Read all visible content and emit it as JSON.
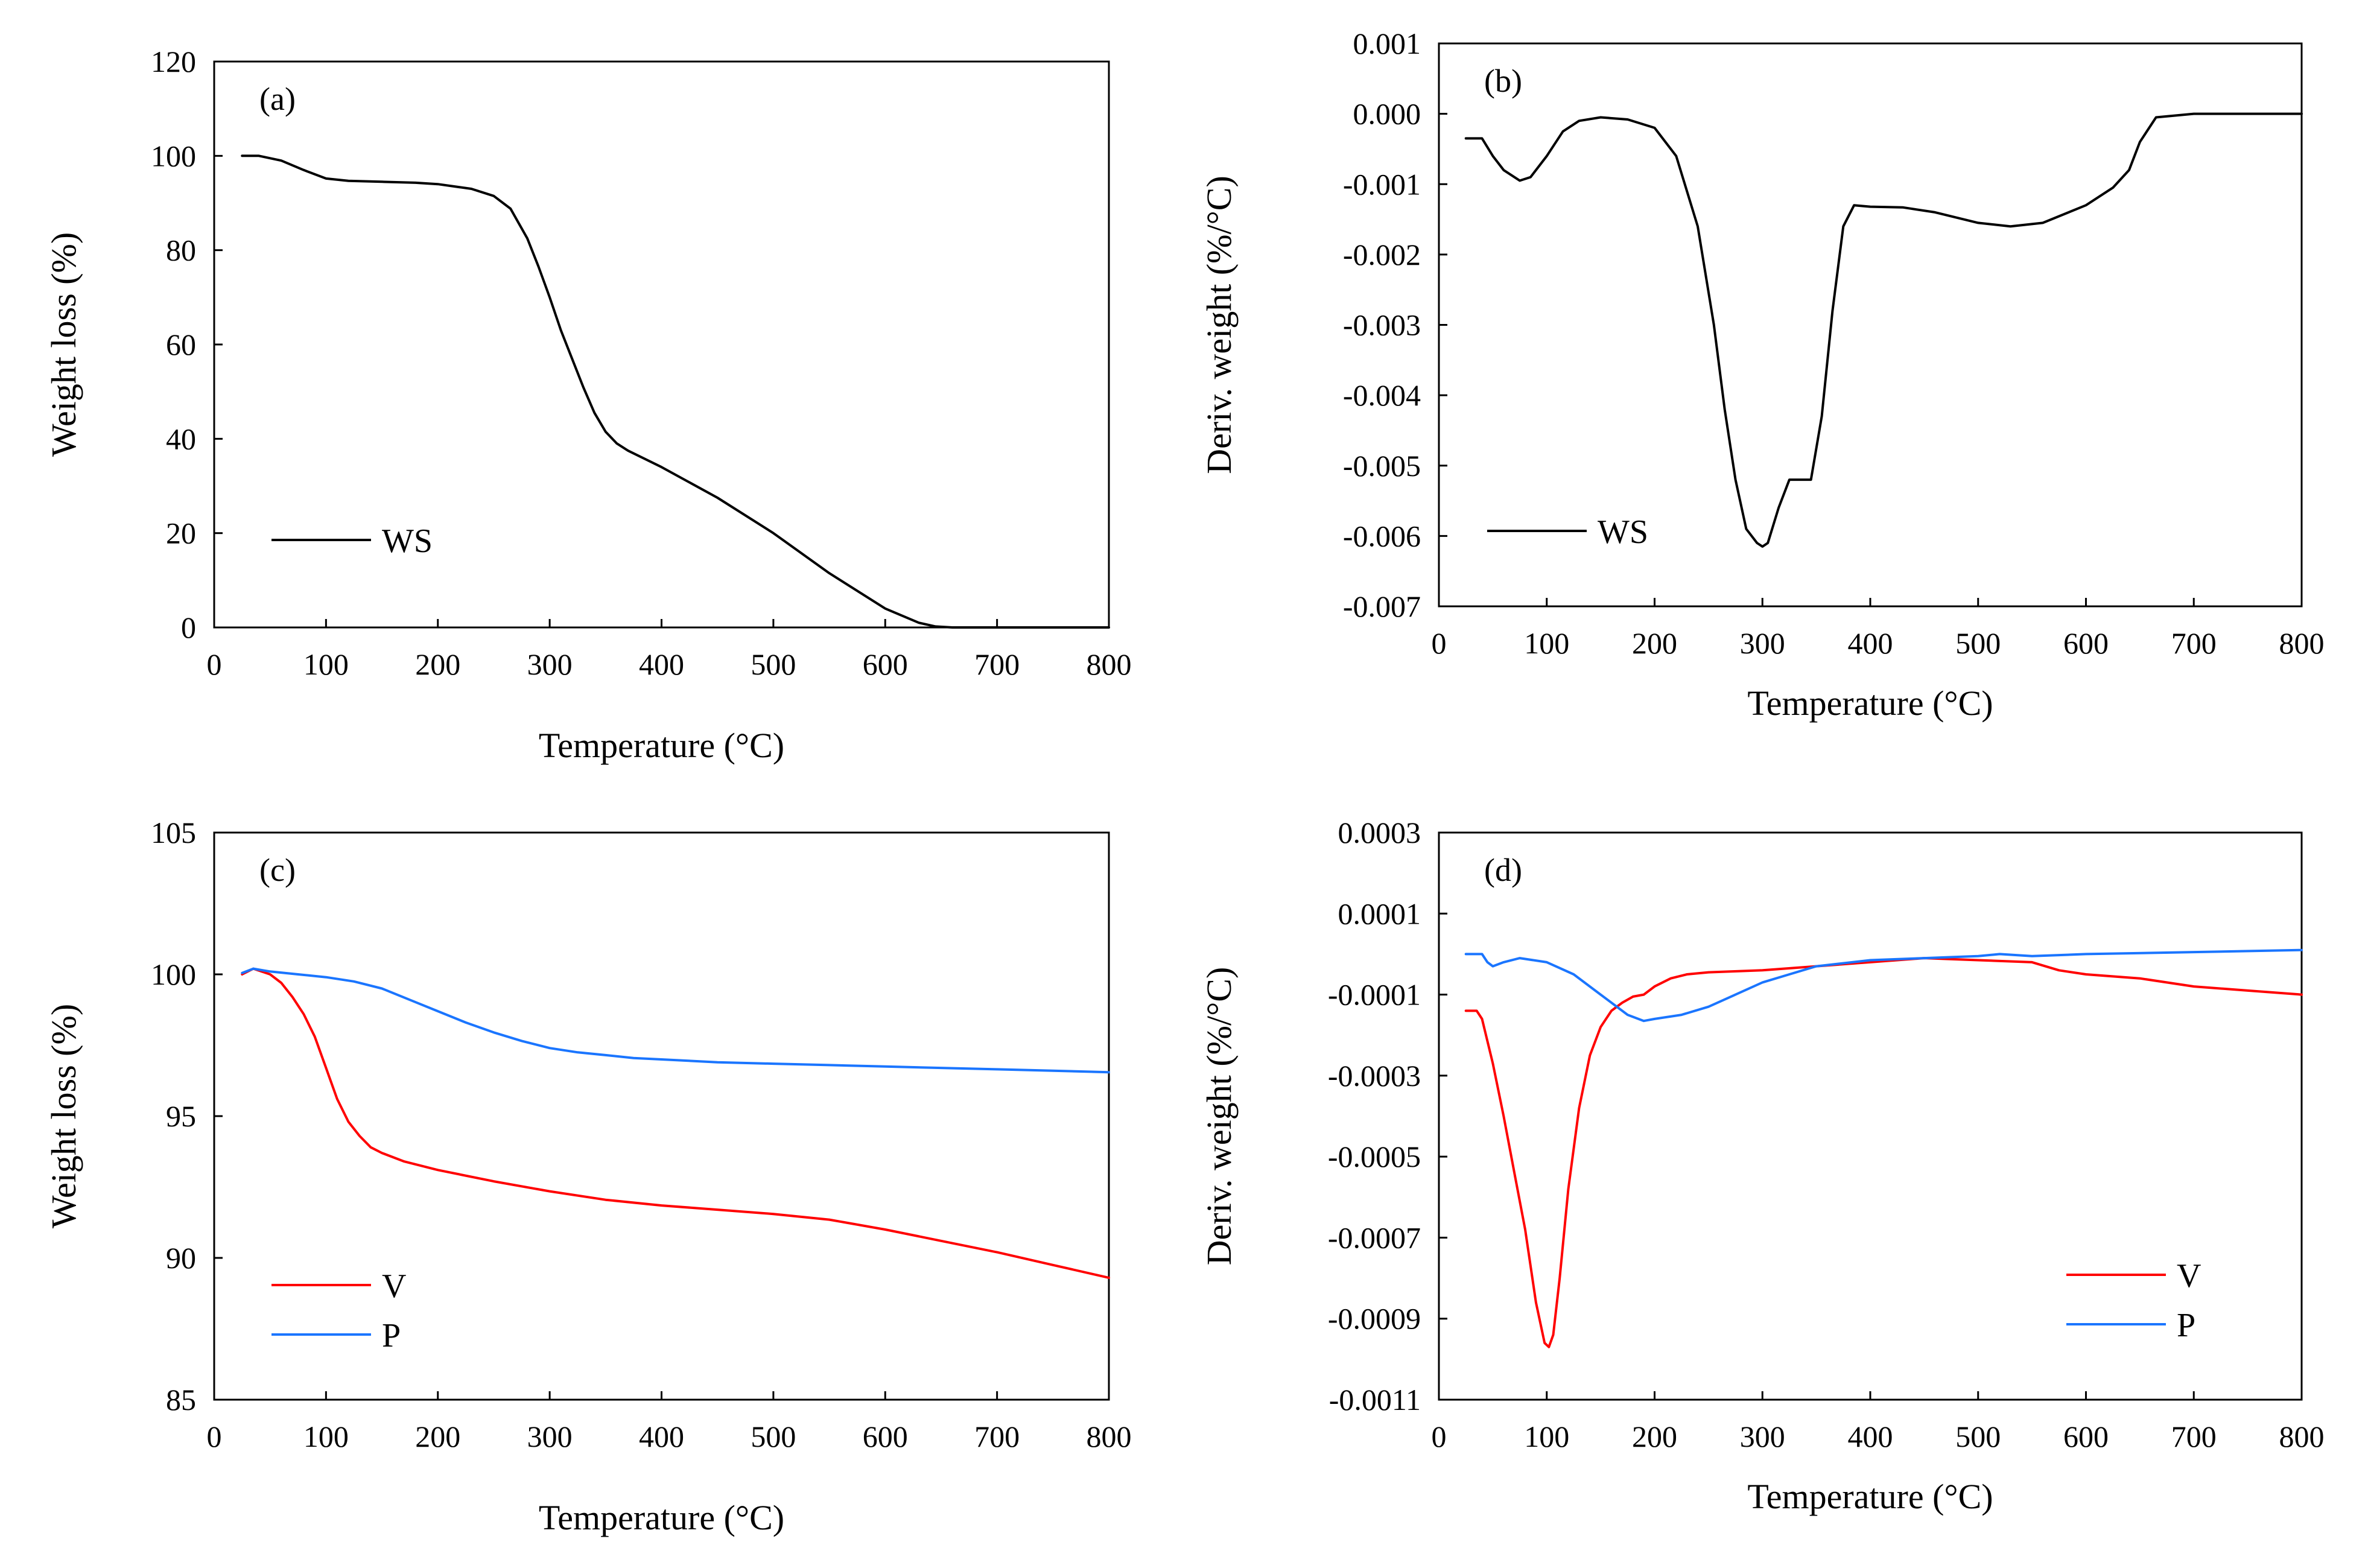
{
  "chart_data": [
    {
      "id": "a",
      "type": "line",
      "panel_label": "(a)",
      "xlabel": "Temperature (°C)",
      "ylabel": "Weight loss (%)",
      "xlim": [
        0,
        800
      ],
      "ylim": [
        0,
        120
      ],
      "xticks": [
        0,
        100,
        200,
        300,
        400,
        500,
        600,
        700,
        800
      ],
      "yticks": [
        0,
        20,
        40,
        60,
        80,
        100,
        120
      ],
      "legend_position": "bottom-left",
      "series": [
        {
          "name": "WS",
          "color": "#000000",
          "x": [
            25,
            40,
            60,
            80,
            100,
            120,
            150,
            180,
            200,
            230,
            250,
            265,
            280,
            290,
            300,
            310,
            320,
            330,
            340,
            350,
            360,
            370,
            400,
            450,
            500,
            550,
            600,
            630,
            645,
            660,
            700,
            800
          ],
          "y": [
            100,
            100,
            99,
            97,
            95.2,
            94.7,
            94.5,
            94.3,
            94,
            93,
            91.5,
            88.8,
            82.5,
            76.5,
            70,
            63,
            57,
            51,
            45.5,
            41.5,
            39,
            37.5,
            34,
            27.5,
            20,
            11.5,
            4,
            1,
            0.2,
            0,
            0,
            0
          ]
        }
      ]
    },
    {
      "id": "b",
      "type": "line",
      "panel_label": "(b)",
      "xlabel": "Temperature (°C)",
      "ylabel": "Deriv. weight (%/°C)",
      "xlim": [
        0,
        800
      ],
      "ylim": [
        -0.007,
        0.001
      ],
      "xticks": [
        0,
        100,
        200,
        300,
        400,
        500,
        600,
        700,
        800
      ],
      "yticks": [
        -0.007,
        -0.006,
        -0.005,
        -0.004,
        -0.003,
        -0.002,
        -0.001,
        0.0,
        0.001
      ],
      "ytick_labels": [
        "-0.007",
        "-0.006",
        "-0.005",
        "-0.004",
        "-0.003",
        "-0.002",
        "-0.001",
        "0.000",
        "0.001"
      ],
      "legend_position": "bottom-left",
      "series": [
        {
          "name": "WS",
          "color": "#000000",
          "x": [
            25,
            40,
            50,
            60,
            75,
            85,
            100,
            115,
            130,
            150,
            175,
            200,
            220,
            240,
            255,
            265,
            275,
            285,
            295,
            300,
            305,
            315,
            325,
            335,
            345,
            355,
            365,
            375,
            385,
            400,
            430,
            460,
            500,
            530,
            560,
            600,
            625,
            640,
            650,
            665,
            700,
            800
          ],
          "y": [
            -0.00035,
            -0.00035,
            -0.0006,
            -0.0008,
            -0.00095,
            -0.0009,
            -0.0006,
            -0.00025,
            -0.0001,
            -5e-05,
            -8e-05,
            -0.0002,
            -0.0006,
            -0.0016,
            -0.003,
            -0.0042,
            -0.0052,
            -0.0059,
            -0.0061,
            -0.00615,
            -0.0061,
            -0.0056,
            -0.0052,
            -0.0052,
            -0.0052,
            -0.0043,
            -0.0028,
            -0.0016,
            -0.0013,
            -0.00132,
            -0.00133,
            -0.0014,
            -0.00155,
            -0.0016,
            -0.00155,
            -0.0013,
            -0.00105,
            -0.0008,
            -0.0004,
            -5e-05,
            0.0,
            0.0
          ]
        }
      ]
    },
    {
      "id": "c",
      "type": "line",
      "panel_label": "(c)",
      "xlabel": "Temperature (°C)",
      "ylabel": "Weight loss (%)",
      "xlim": [
        0,
        800
      ],
      "ylim": [
        85,
        105
      ],
      "xticks": [
        0,
        100,
        200,
        300,
        400,
        500,
        600,
        700,
        800
      ],
      "yticks": [
        85,
        90,
        95,
        100,
        105
      ],
      "legend_position": "bottom-left",
      "series": [
        {
          "name": "V",
          "color": "#ff0000",
          "x": [
            25,
            35,
            50,
            60,
            70,
            80,
            90,
            100,
            110,
            120,
            130,
            140,
            150,
            170,
            200,
            250,
            300,
            350,
            400,
            450,
            500,
            550,
            600,
            650,
            700,
            750,
            800
          ],
          "y": [
            100,
            100.2,
            100,
            99.7,
            99.2,
            98.6,
            97.8,
            96.7,
            95.6,
            94.8,
            94.3,
            93.9,
            93.7,
            93.4,
            93.1,
            92.7,
            92.35,
            92.05,
            91.85,
            91.7,
            91.55,
            91.35,
            91.0,
            90.6,
            90.2,
            89.75,
            89.3
          ]
        },
        {
          "name": "P",
          "color": "#1a75ff",
          "x": [
            25,
            35,
            50,
            75,
            100,
            125,
            150,
            175,
            200,
            225,
            250,
            275,
            300,
            325,
            350,
            375,
            400,
            450,
            500,
            550,
            600,
            650,
            700,
            750,
            800
          ],
          "y": [
            100.05,
            100.2,
            100.1,
            100.0,
            99.9,
            99.75,
            99.5,
            99.1,
            98.7,
            98.3,
            97.95,
            97.65,
            97.4,
            97.25,
            97.15,
            97.05,
            97.0,
            96.9,
            96.85,
            96.8,
            96.75,
            96.7,
            96.65,
            96.6,
            96.55
          ]
        }
      ]
    },
    {
      "id": "d",
      "type": "line",
      "panel_label": "(d)",
      "xlabel": "Temperature (°C)",
      "ylabel": "Deriv. weight (%/°C)",
      "xlim": [
        0,
        800
      ],
      "ylim": [
        -0.0011,
        0.0003
      ],
      "xticks": [
        0,
        100,
        200,
        300,
        400,
        500,
        600,
        700,
        800
      ],
      "yticks": [
        -0.0011,
        -0.0009,
        -0.0007,
        -0.0005,
        -0.0003,
        -0.0001,
        0.0001,
        0.0003
      ],
      "ytick_labels": [
        "-0.0011",
        "-0.0009",
        "-0.0007",
        "-0.0005",
        "-0.0003",
        "-0.0001",
        "0.0001",
        "0.0003"
      ],
      "legend_position": "bottom-right",
      "series": [
        {
          "name": "V",
          "color": "#ff0000",
          "x": [
            25,
            35,
            40,
            50,
            60,
            70,
            80,
            90,
            98,
            102,
            106,
            112,
            120,
            130,
            140,
            150,
            160,
            170,
            180,
            190,
            200,
            215,
            230,
            250,
            300,
            350,
            400,
            450,
            500,
            550,
            575,
            600,
            650,
            700,
            750,
            800
          ],
          "y": [
            -0.00014,
            -0.00014,
            -0.00016,
            -0.00027,
            -0.0004,
            -0.00054,
            -0.00068,
            -0.00086,
            -0.00096,
            -0.00097,
            -0.00094,
            -0.0008,
            -0.00058,
            -0.00038,
            -0.00025,
            -0.00018,
            -0.00014,
            -0.00012,
            -0.000105,
            -0.0001,
            -8e-05,
            -6e-05,
            -5e-05,
            -4.5e-05,
            -4e-05,
            -3e-05,
            -2e-05,
            -1e-05,
            -1.5e-05,
            -2e-05,
            -4e-05,
            -5e-05,
            -6e-05,
            -8e-05,
            -9e-05,
            -0.0001
          ]
        },
        {
          "name": "P",
          "color": "#1a75ff",
          "x": [
            25,
            40,
            45,
            50,
            60,
            75,
            100,
            125,
            150,
            175,
            190,
            200,
            225,
            250,
            275,
            300,
            325,
            350,
            400,
            450,
            500,
            520,
            550,
            600,
            700,
            800
          ],
          "y": [
            0.0,
            0.0,
            -2e-05,
            -3e-05,
            -2e-05,
            -1e-05,
            -2e-05,
            -5e-05,
            -0.0001,
            -0.00015,
            -0.000165,
            -0.00016,
            -0.00015,
            -0.00013,
            -0.0001,
            -7e-05,
            -5e-05,
            -3e-05,
            -1.5e-05,
            -1e-05,
            -5e-06,
            0.0,
            -5e-06,
            0.0,
            5e-06,
            1e-05
          ]
        }
      ]
    }
  ]
}
